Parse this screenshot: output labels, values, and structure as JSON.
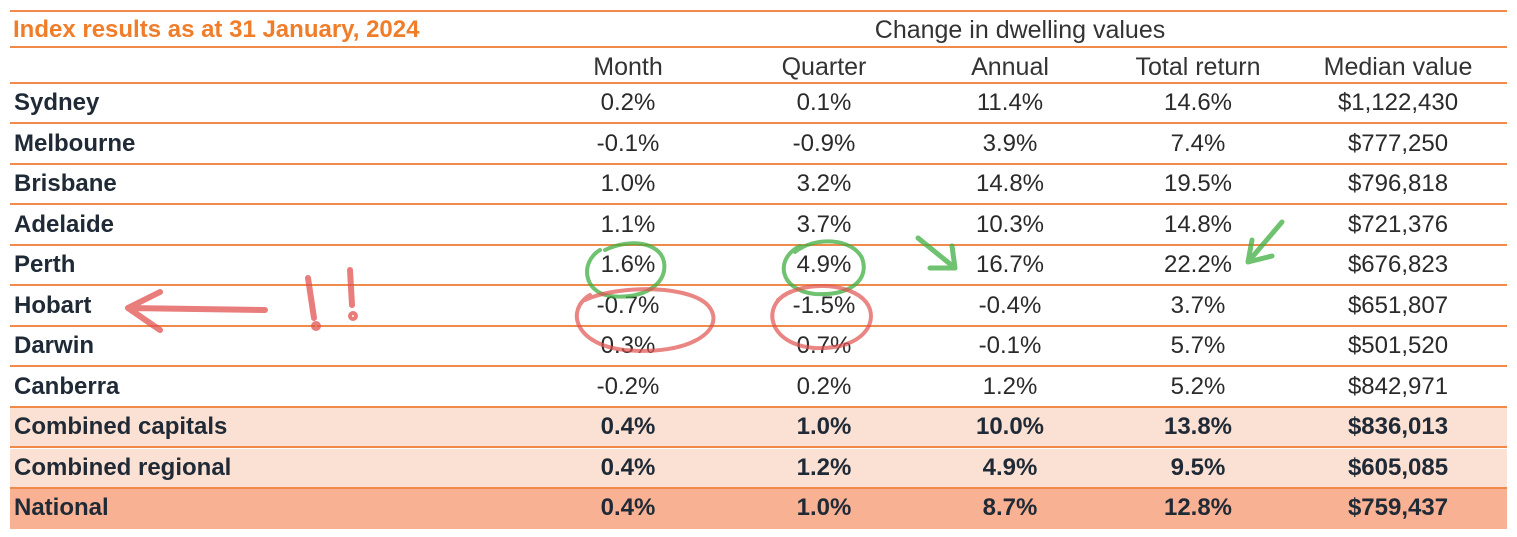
{
  "chart_data": {
    "type": "table",
    "title": "Index results as at 31 January, 2024",
    "group_header": "Change in dwelling values",
    "columns": [
      "Month",
      "Quarter",
      "Annual",
      "Total return",
      "Median value"
    ],
    "rows": [
      {
        "region": "Sydney",
        "values": [
          "0.2%",
          "0.1%",
          "11.4%",
          "14.6%",
          "$1,122,430"
        ],
        "style": "normal"
      },
      {
        "region": "Melbourne",
        "values": [
          "-0.1%",
          "-0.9%",
          "3.9%",
          "7.4%",
          "$777,250"
        ],
        "style": "normal"
      },
      {
        "region": "Brisbane",
        "values": [
          "1.0%",
          "3.2%",
          "14.8%",
          "19.5%",
          "$796,818"
        ],
        "style": "normal"
      },
      {
        "region": "Adelaide",
        "values": [
          "1.1%",
          "3.7%",
          "10.3%",
          "14.8%",
          "$721,376"
        ],
        "style": "normal"
      },
      {
        "region": "Perth",
        "values": [
          "1.6%",
          "4.9%",
          "16.7%",
          "22.2%",
          "$676,823"
        ],
        "style": "normal"
      },
      {
        "region": "Hobart",
        "values": [
          "-0.7%",
          "-1.5%",
          "-0.4%",
          "3.7%",
          "$651,807"
        ],
        "style": "normal"
      },
      {
        "region": "Darwin",
        "values": [
          "0.3%",
          "0.7%",
          "-0.1%",
          "5.7%",
          "$501,520"
        ],
        "style": "normal"
      },
      {
        "region": "Canberra",
        "values": [
          "-0.2%",
          "0.2%",
          "1.2%",
          "5.2%",
          "$842,971"
        ],
        "style": "normal"
      },
      {
        "region": "Combined capitals",
        "values": [
          "0.4%",
          "1.0%",
          "10.0%",
          "13.8%",
          "$836,013"
        ],
        "style": "combined"
      },
      {
        "region": "Combined regional",
        "values": [
          "0.4%",
          "1.2%",
          "4.9%",
          "9.5%",
          "$605,085"
        ],
        "style": "combined"
      },
      {
        "region": "National",
        "values": [
          "0.4%",
          "1.0%",
          "8.7%",
          "12.8%",
          "$759,437"
        ],
        "style": "national"
      }
    ]
  },
  "annotations": {
    "exclamation": "!!",
    "green_color": "#3fae3f",
    "red_color": "#e0524f"
  },
  "colors": {
    "accent": "#f07d2a",
    "rule": "#f08a4b",
    "combined_fill": "#fbe1d3",
    "national_fill": "#f8b193"
  }
}
